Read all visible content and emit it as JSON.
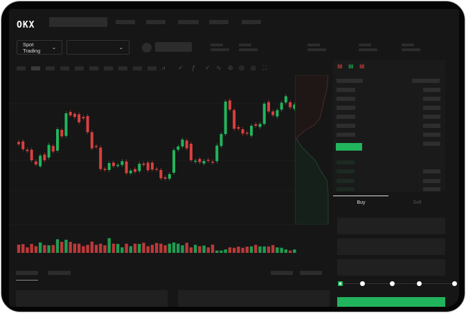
{
  "header": {
    "logo": "OKX"
  },
  "market_selector": {
    "label": "Spot Trading",
    "chevron": "chevron-down-icon"
  },
  "pair_selector": {
    "value": "",
    "chevron": "chevron-down-icon"
  },
  "trade_panel": {
    "tabs": [
      {
        "label": "Buy",
        "active": true
      },
      {
        "label": "Sell",
        "active": false
      }
    ],
    "leverage_slider": {
      "value": 0,
      "steps": 5
    }
  },
  "colors": {
    "up": "#22b45d",
    "down": "#d9403f",
    "background": "#161616"
  },
  "chart_data": {
    "type": "candlestick",
    "candles": [
      [
        250,
        240
      ],
      [
        252,
        218
      ],
      [
        216,
        210
      ],
      [
        216,
        170
      ],
      [
        165,
        152
      ],
      [
        144,
        190
      ],
      [
        195,
        170
      ],
      [
        182,
        237
      ],
      [
        232,
        208
      ],
      [
        212,
        305
      ],
      [
        302,
        274
      ],
      [
        276,
        374
      ],
      [
        380,
        365
      ],
      [
        372,
        358
      ],
      [
        370,
        335
      ],
      [
        358,
        352
      ],
      [
        362,
        292
      ],
      [
        292,
        222
      ],
      [
        232,
        228
      ],
      [
        225,
        132
      ],
      [
        133,
        128
      ],
      [
        128,
        158
      ],
      [
        160,
        145
      ],
      [
        145,
        150
      ],
      [
        150,
        166
      ],
      [
        165,
        114
      ],
      [
        114,
        125
      ],
      [
        132,
        120
      ],
      [
        123,
        155
      ],
      [
        156,
        150
      ],
      [
        160,
        127
      ],
      [
        160,
        130
      ],
      [
        133,
        130
      ],
      [
        128,
        92
      ],
      [
        96,
        90
      ],
      [
        90,
        110
      ],
      [
        116,
        214
      ],
      [
        216,
        230
      ],
      [
        230,
        260
      ],
      [
        256,
        222
      ],
      [
        242,
        170
      ],
      [
        164,
        168
      ],
      [
        176,
        162
      ],
      [
        156,
        167
      ],
      [
        172,
        168
      ],
      [
        164,
        160
      ],
      [
        166,
        234
      ],
      [
        232,
        284
      ],
      [
        284,
        425
      ],
      [
        430,
        390
      ],
      [
        388,
        307
      ],
      [
        314,
        307
      ],
      [
        305,
        286
      ],
      [
        290,
        286
      ],
      [
        277,
        320
      ],
      [
        327,
        320
      ],
      [
        315,
        328
      ],
      [
        328,
        416
      ],
      [
        423,
        382
      ],
      [
        382,
        366
      ],
      [
        360,
        388
      ],
      [
        390,
        420
      ],
      [
        421,
        448
      ],
      [
        422,
        400
      ],
      [
        393,
        412
      ]
    ],
    "volume": [
      36,
      38,
      24,
      39,
      29,
      45,
      34,
      33,
      34,
      59,
      48,
      57,
      48,
      40,
      40,
      29,
      35,
      49,
      35,
      40,
      33,
      64,
      40,
      39,
      24,
      40,
      29,
      40,
      39,
      44,
      29,
      35,
      43,
      40,
      33,
      40,
      45,
      40,
      33,
      44,
      24,
      35,
      29,
      32,
      24,
      36,
      10,
      10,
      15,
      24,
      22,
      27,
      22,
      27,
      28,
      35,
      28,
      28,
      28,
      34,
      24,
      22,
      15,
      10,
      15
    ]
  }
}
